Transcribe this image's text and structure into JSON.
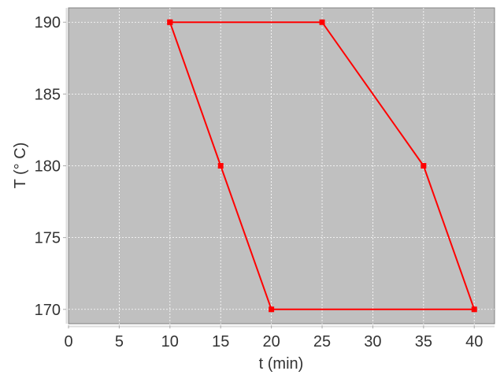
{
  "chart_data": {
    "type": "line",
    "title": "",
    "xlabel": "t (min)",
    "ylabel": "T (° C)",
    "xlim": [
      0,
      42
    ],
    "ylim": [
      169,
      191
    ],
    "xticks": [
      0,
      5,
      10,
      15,
      20,
      25,
      30,
      35,
      40
    ],
    "yticks": [
      170,
      175,
      180,
      185,
      190
    ],
    "grid": true,
    "background_color": "#c0c0c0",
    "series": [
      {
        "color": "#ff0000",
        "marker": "square",
        "points": [
          [
            10,
            190
          ],
          [
            25,
            190
          ],
          [
            35,
            180
          ],
          [
            40,
            170
          ],
          [
            20,
            170
          ],
          [
            15,
            180
          ],
          [
            10,
            190
          ]
        ]
      }
    ]
  }
}
